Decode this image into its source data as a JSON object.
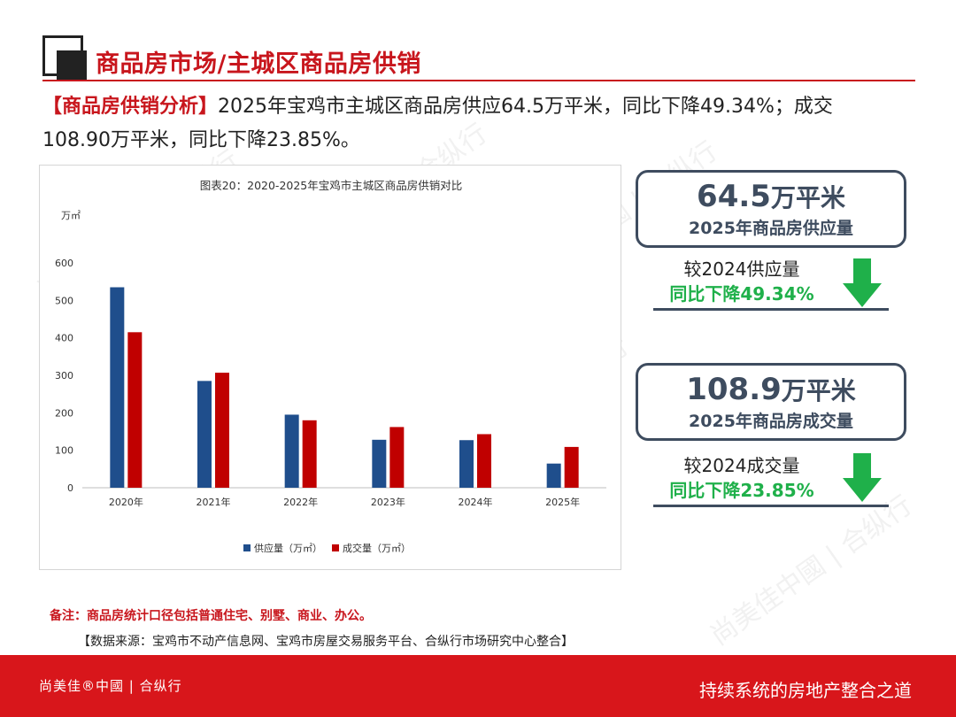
{
  "header": {
    "title": "商品房市场/主城区商品房供销"
  },
  "intro": {
    "bracket_label": "【商品房供销分析】",
    "text_1": "2025年宝鸡市主城区商品房供应64.5万平米，同比下降49.34%；成交",
    "text_2": "108.90万平米，同比下降23.85%。"
  },
  "chart_data": {
    "type": "bar",
    "title": "图表20：2020-2025年宝鸡市主城区商品房供销对比",
    "ylabel": "万㎡",
    "categories": [
      "2020年",
      "2021年",
      "2022年",
      "2023年",
      "2024年",
      "2025年"
    ],
    "series": [
      {
        "name": "供应量（万㎡）",
        "color": "#1f4e8c",
        "values": [
          535,
          285,
          195,
          128,
          127,
          64.5
        ]
      },
      {
        "name": "成交量（万㎡）",
        "color": "#c00000",
        "values": [
          415,
          307,
          180,
          162,
          143,
          108.9
        ]
      }
    ],
    "yticks": [
      "0",
      "100",
      "200",
      "300",
      "400",
      "500",
      "600"
    ],
    "ylim": [
      0,
      600
    ],
    "legend_position": "bottom",
    "grid": false
  },
  "stats": {
    "supply": {
      "value": "64.5",
      "unit": "万平米",
      "label": "2025年商品房供应量",
      "compare_label": "较2024供应量",
      "change": "同比下降49.34%"
    },
    "deal": {
      "value": "108.9",
      "unit": "万平米",
      "label": "2025年商品房成交量",
      "compare_label": "较2024成交量",
      "change": "同比下降23.85%"
    }
  },
  "notes": {
    "note": "备注：商品房统计口径包括普通住宅、别墅、商业、办公。",
    "source": "【数据来源：宝鸡市不动产信息网、宝鸡市房屋交易服务平台、合纵行市场研究中心整合】"
  },
  "footer": {
    "brand": "尚美佳®中國 | 合纵行",
    "slogan": "持续系统的房地产整合之道"
  },
  "colors": {
    "brand_red": "#c8161d",
    "footer_red": "#d8161b",
    "panel_navy": "#3e4c5f",
    "down_green": "#1fb04a"
  },
  "icons": {
    "down_arrow": "arrow-down-icon"
  }
}
